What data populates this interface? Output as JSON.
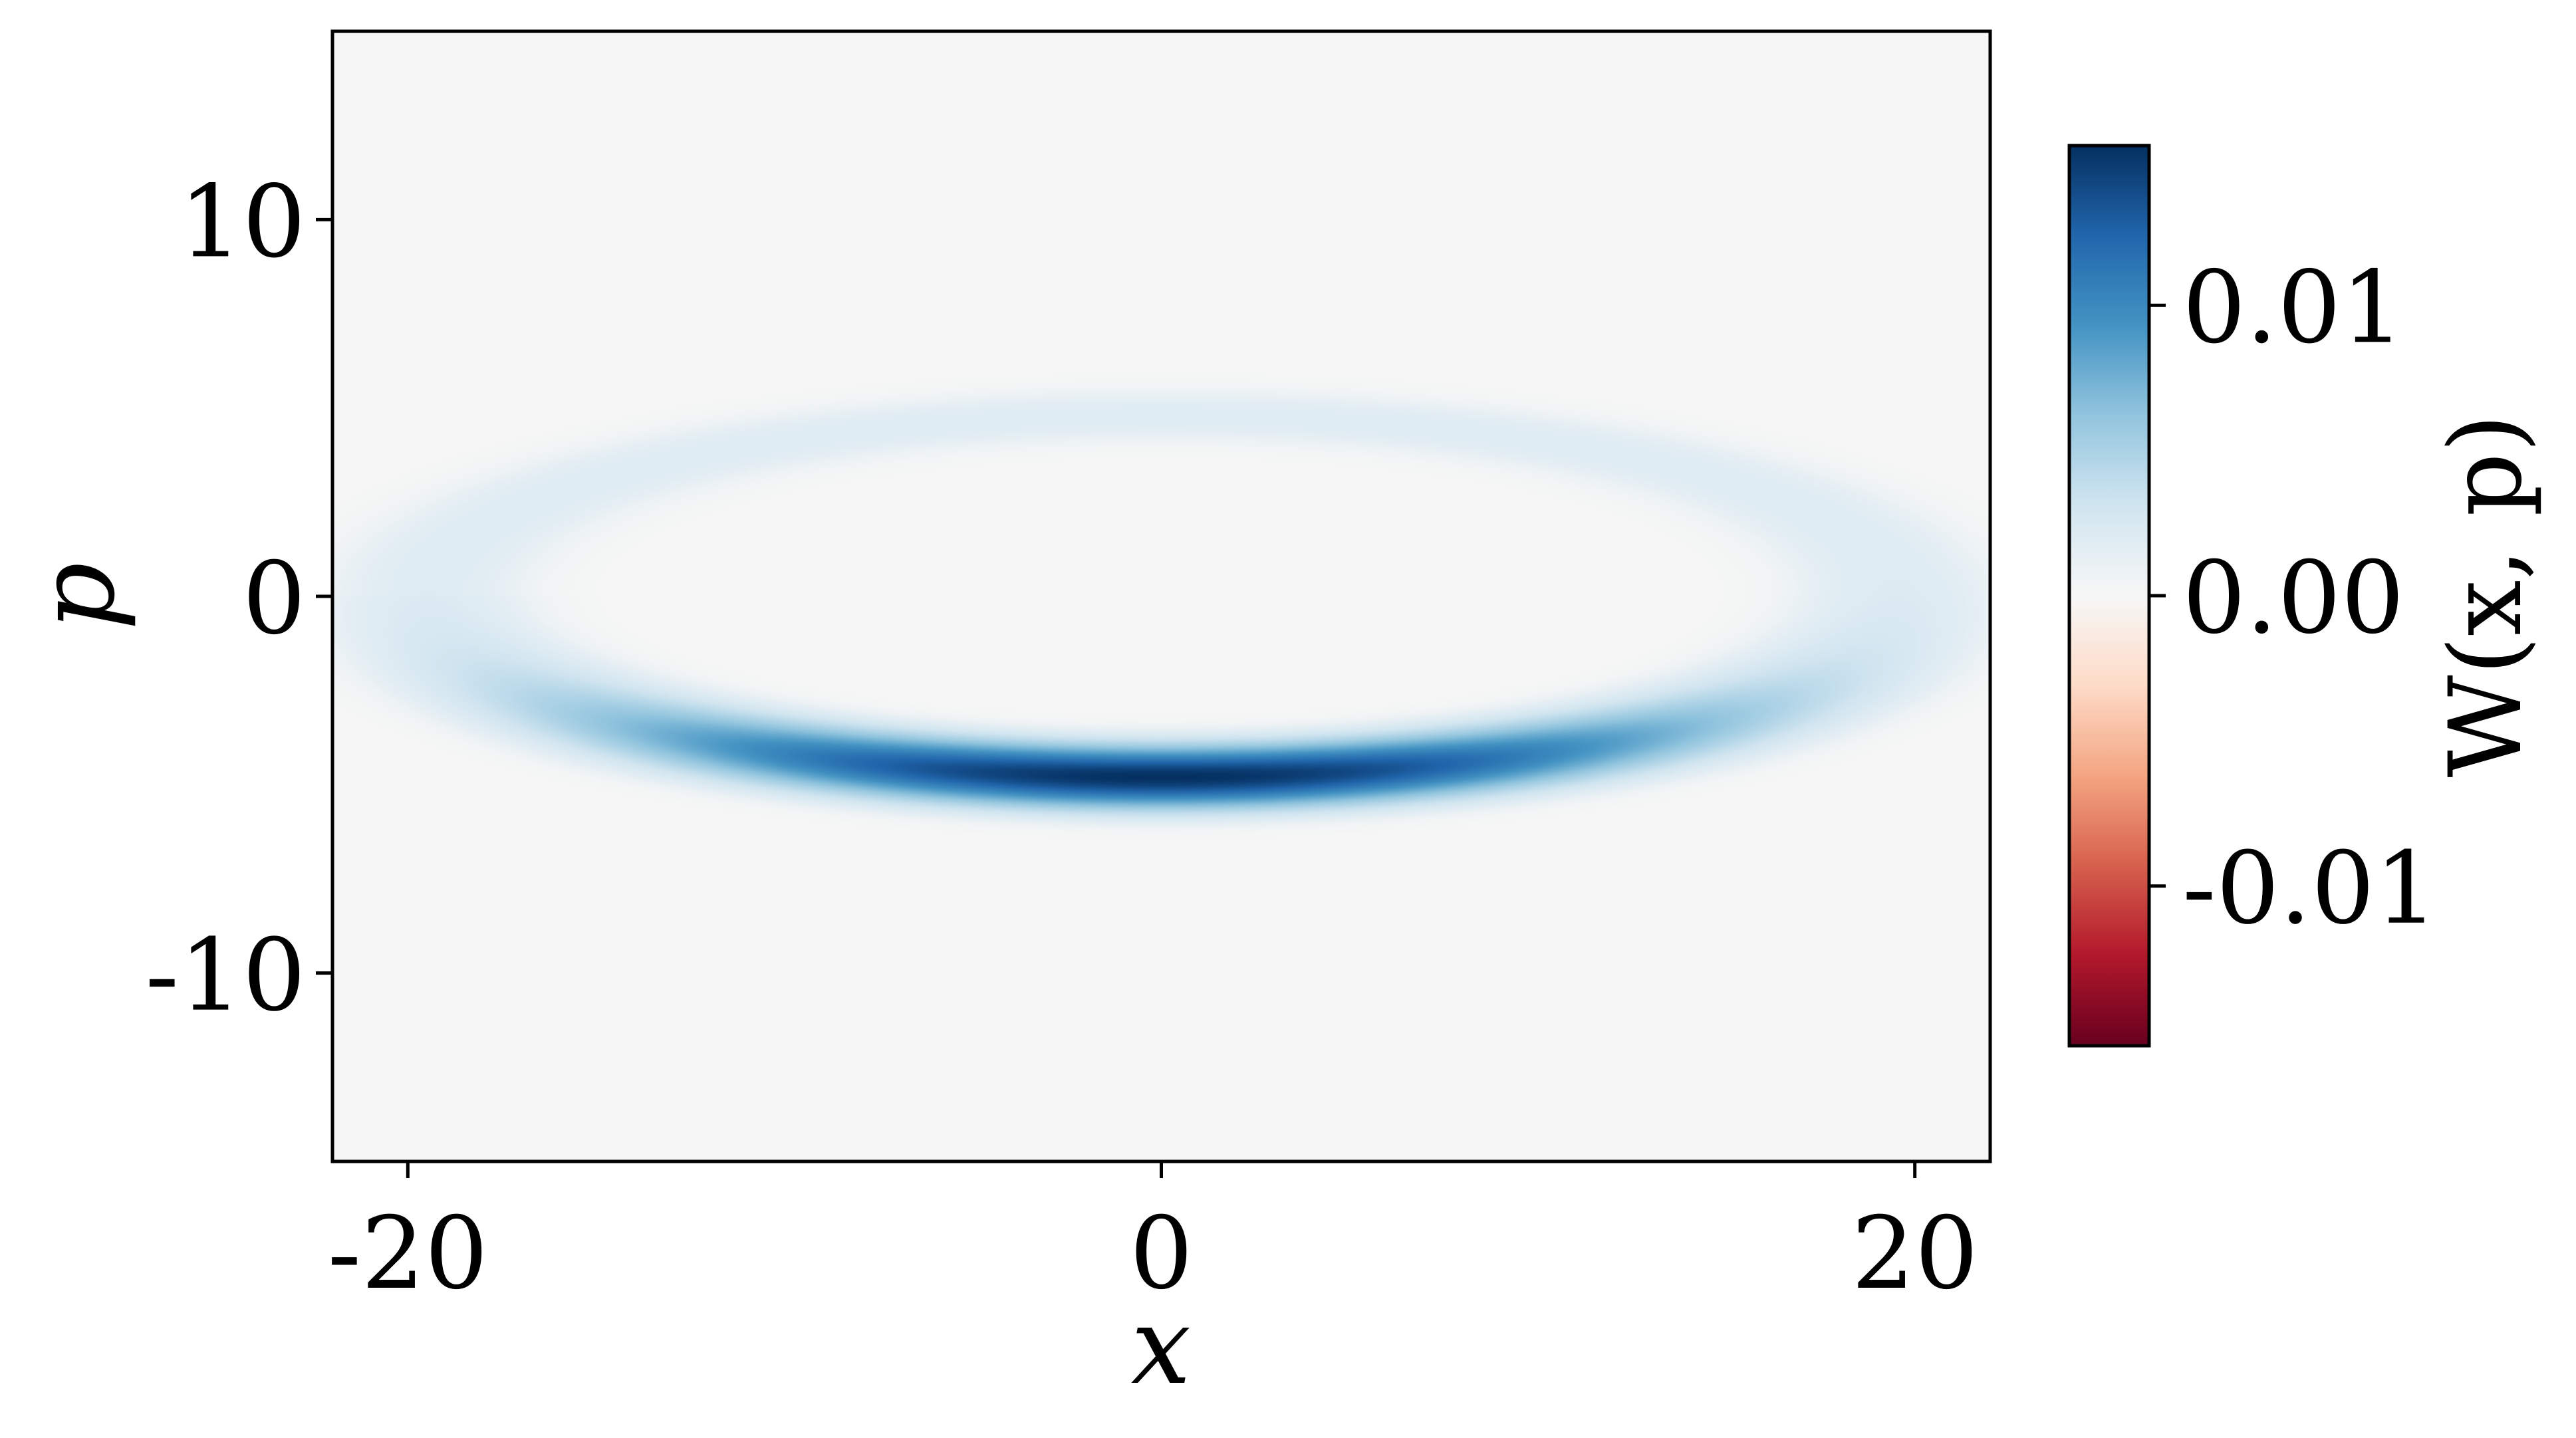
{
  "chart_data": {
    "type": "heatmap",
    "title": "",
    "xlabel": "x",
    "ylabel": "p",
    "xlim": [
      -22,
      22
    ],
    "ylim": [
      -15,
      15
    ],
    "x_ticks": [
      -20,
      0,
      20
    ],
    "x_tick_labels": [
      "-20",
      "0",
      "20"
    ],
    "y_ticks": [
      10,
      0,
      -10
    ],
    "y_tick_labels": [
      "10",
      "0",
      "-10"
    ],
    "grid": false,
    "colormap": "RdBu",
    "colormap_colors": [
      "#67001f",
      "#b2182b",
      "#d6604d",
      "#f4a582",
      "#fddbc7",
      "#f7f7f7",
      "#d1e5f0",
      "#92c5de",
      "#4393c3",
      "#2166ac",
      "#053061"
    ],
    "background_color": "#f5f6f5",
    "colorbar": {
      "label": "W(x, p)",
      "range": [
        -0.0155,
        0.0155
      ],
      "ticks": [
        0.01,
        0.0,
        -0.01
      ],
      "tick_labels": [
        "0.01",
        "0.00",
        "-0.01"
      ]
    },
    "ring": {
      "center": [
        0,
        0
      ],
      "semi_axis_x": 19.5,
      "semi_axis_p": 4.8,
      "peak_value": 0.0155,
      "peak_location": [
        0,
        -4.8
      ],
      "min_ring_value": 0.002
    }
  }
}
